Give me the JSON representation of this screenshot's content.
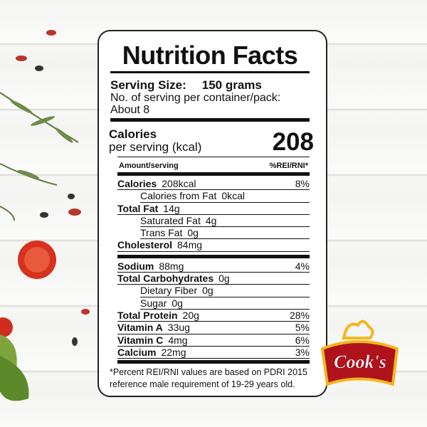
{
  "label": {
    "title": "Nutrition Facts",
    "serving_size_label": "Serving Size:",
    "serving_size_value": "150 grams",
    "servings_text": "No. of serving per container/pack:",
    "servings_value": "About 8",
    "calories_label": "Calories",
    "calories_sublabel": "per serving (kcal)",
    "calories_value": "208",
    "header_left": "Amount/serving",
    "header_right": "%REI/RNI*",
    "sections": [
      [
        {
          "name": "Calories",
          "amount": "208kcal",
          "percent": "8%",
          "subs": [
            {
              "name": "Calories from Fat",
              "amount": "0kcal"
            }
          ]
        },
        {
          "name": "Total Fat",
          "amount": "14g",
          "subs": [
            {
              "name": "Saturated Fat",
              "amount": "4g"
            },
            {
              "name": "Trans Fat",
              "amount": "0g"
            }
          ]
        },
        {
          "name": "Cholesterol",
          "amount": "84mg"
        }
      ],
      [
        {
          "name": "Sodium",
          "amount": "88mg",
          "percent": "4%"
        },
        {
          "name": "Total Carbohydrates",
          "amount": "0g",
          "subs": [
            {
              "name": "Dietary Fiber",
              "amount": "0g"
            },
            {
              "name": "Sugar",
              "amount": "0g"
            }
          ]
        },
        {
          "name": "Total Protein",
          "amount": "20g",
          "percent": "28%"
        },
        {
          "name": "Vitamin A",
          "amount": "33ug",
          "percent": "5%"
        },
        {
          "name": "Vitamin C",
          "amount": "4mg",
          "percent": "6%"
        },
        {
          "name": "Calcium",
          "amount": "22mg",
          "percent": "3%"
        }
      ]
    ],
    "footnote": "*Percent REI/RNI values are based on PDRI 2015 reference male requirement of 19-29 years old."
  },
  "logo": {
    "text": "Cook's"
  }
}
